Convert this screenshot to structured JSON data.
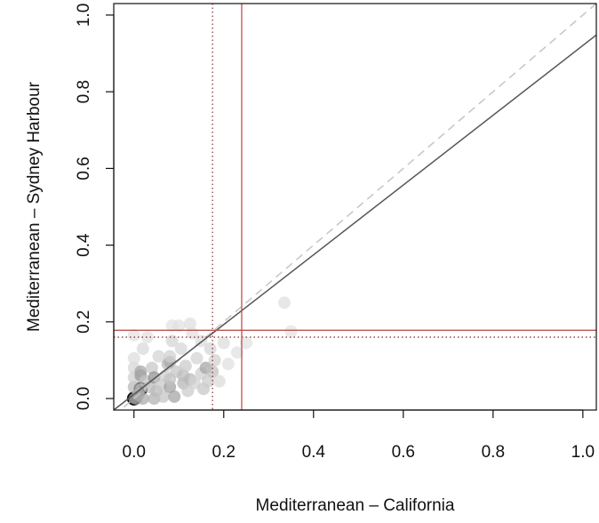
{
  "chart_data": {
    "type": "scatter",
    "title": "",
    "xlabel": "Mediterranean – California",
    "ylabel": "Mediterranean – Sydney Harbour",
    "xlim": [
      -0.045,
      1.03
    ],
    "ylim": [
      -0.03,
      1.03
    ],
    "xticks": [
      "0.0",
      "0.2",
      "0.4",
      "0.6",
      "0.8",
      "1.0"
    ],
    "yticks": [
      "0.0",
      "0.2",
      "0.4",
      "0.6",
      "0.8",
      "1.0"
    ],
    "grid": false,
    "legend": "none",
    "reference_lines": {
      "identity_dashed": {
        "from": [
          -0.045,
          -0.045
        ],
        "to": [
          1.03,
          1.03
        ],
        "color": "#c8c8c8",
        "style": "dashed"
      },
      "fit_line": {
        "from": [
          -0.045,
          -0.03
        ],
        "to": [
          1.03,
          0.948
        ],
        "color": "#555555",
        "style": "solid"
      },
      "red_vertical_x": 0.24,
      "red_horizontal_y": 0.178,
      "dotted_vertical_x": 0.175,
      "dotted_horizontal_y": 0.16,
      "red_color": "#c0504d",
      "dotted_color": "#8b3a3a"
    },
    "points": [
      {
        "x": 0.0,
        "y": 0.0,
        "shade": "#444444",
        "outline": true
      },
      {
        "x": 0.015,
        "y": 0.025,
        "shade": "#666666",
        "outline": true
      },
      {
        "x": 0.005,
        "y": 0.0,
        "shade": "#999999"
      },
      {
        "x": 0.01,
        "y": 0.01,
        "shade": "#aaaaaa"
      },
      {
        "x": 0.02,
        "y": 0.0,
        "shade": "#aaaaaa"
      },
      {
        "x": 0.0,
        "y": 0.03,
        "shade": "#b5b5b5"
      },
      {
        "x": 0.0,
        "y": 0.055,
        "shade": "#cfcfcf"
      },
      {
        "x": 0.0,
        "y": 0.08,
        "shade": "#d5d5d5"
      },
      {
        "x": 0.0,
        "y": 0.105,
        "shade": "#dddddd"
      },
      {
        "x": 0.0,
        "y": 0.165,
        "shade": "#e2e2e2"
      },
      {
        "x": 0.015,
        "y": 0.06,
        "shade": "#9a9a9a"
      },
      {
        "x": 0.015,
        "y": 0.07,
        "shade": "#a5a5a5"
      },
      {
        "x": 0.02,
        "y": 0.13,
        "shade": "#d8d8d8"
      },
      {
        "x": 0.025,
        "y": 0.045,
        "shade": "#c2c2c2"
      },
      {
        "x": 0.03,
        "y": 0.16,
        "shade": "#e0e0e0"
      },
      {
        "x": 0.035,
        "y": 0.03,
        "shade": "#bdbdbd"
      },
      {
        "x": 0.04,
        "y": 0.08,
        "shade": "#c6c6c6"
      },
      {
        "x": 0.045,
        "y": 0.0,
        "shade": "#b0b0b0"
      },
      {
        "x": 0.045,
        "y": 0.055,
        "shade": "#8f8f8f"
      },
      {
        "x": 0.05,
        "y": 0.02,
        "shade": "#bababa"
      },
      {
        "x": 0.055,
        "y": 0.11,
        "shade": "#d3d3d3"
      },
      {
        "x": 0.06,
        "y": 0.035,
        "shade": "#c8c8c8"
      },
      {
        "x": 0.065,
        "y": 0.005,
        "shade": "#c4c4c4"
      },
      {
        "x": 0.07,
        "y": 0.06,
        "shade": "#cdcdcd"
      },
      {
        "x": 0.075,
        "y": 0.09,
        "shade": "#b9b9b9"
      },
      {
        "x": 0.08,
        "y": 0.03,
        "shade": "#a0a0a0"
      },
      {
        "x": 0.08,
        "y": 0.05,
        "shade": "#c0c0c0"
      },
      {
        "x": 0.08,
        "y": 0.095,
        "shade": "#a8a8a8"
      },
      {
        "x": 0.08,
        "y": 0.11,
        "shade": "#cfcfcf"
      },
      {
        "x": 0.085,
        "y": 0.15,
        "shade": "#d4d4d4"
      },
      {
        "x": 0.085,
        "y": 0.19,
        "shade": "#e2e2e2"
      },
      {
        "x": 0.09,
        "y": 0.005,
        "shade": "#a2a2a2"
      },
      {
        "x": 0.095,
        "y": 0.07,
        "shade": "#c4c4c4"
      },
      {
        "x": 0.1,
        "y": 0.19,
        "shade": "#e0e0e0"
      },
      {
        "x": 0.105,
        "y": 0.13,
        "shade": "#d6d6d6"
      },
      {
        "x": 0.11,
        "y": 0.04,
        "shade": "#b4b4b4"
      },
      {
        "x": 0.11,
        "y": 0.06,
        "shade": "#bcbcbc"
      },
      {
        "x": 0.115,
        "y": 0.085,
        "shade": "#c9c9c9"
      },
      {
        "x": 0.12,
        "y": 0.02,
        "shade": "#cacaca"
      },
      {
        "x": 0.125,
        "y": 0.05,
        "shade": "#b8b8b8"
      },
      {
        "x": 0.125,
        "y": 0.195,
        "shade": "#dedede"
      },
      {
        "x": 0.13,
        "y": 0.17,
        "shade": "#e0e0e0"
      },
      {
        "x": 0.135,
        "y": 0.04,
        "shade": "#d0d0d0"
      },
      {
        "x": 0.14,
        "y": 0.105,
        "shade": "#d2d2d2"
      },
      {
        "x": 0.15,
        "y": 0.065,
        "shade": "#cdcdcd"
      },
      {
        "x": 0.15,
        "y": 0.15,
        "shade": "#dcdcdc"
      },
      {
        "x": 0.155,
        "y": 0.025,
        "shade": "#c6c6c6"
      },
      {
        "x": 0.16,
        "y": 0.08,
        "shade": "#a4a4a4"
      },
      {
        "x": 0.165,
        "y": 0.045,
        "shade": "#cbcbcb"
      },
      {
        "x": 0.17,
        "y": 0.13,
        "shade": "#d4d4d4"
      },
      {
        "x": 0.175,
        "y": 0.07,
        "shade": "#bfbfbf"
      },
      {
        "x": 0.18,
        "y": 0.1,
        "shade": "#d0d0d0"
      },
      {
        "x": 0.19,
        "y": 0.045,
        "shade": "#dadada"
      },
      {
        "x": 0.2,
        "y": 0.145,
        "shade": "#dcdcdc"
      },
      {
        "x": 0.21,
        "y": 0.09,
        "shade": "#dfdfdf"
      },
      {
        "x": 0.23,
        "y": 0.12,
        "shade": "#e0e0e0"
      },
      {
        "x": 0.25,
        "y": 0.145,
        "shade": "#e2e2e2"
      },
      {
        "x": 0.335,
        "y": 0.25,
        "shade": "#dedede"
      },
      {
        "x": 0.35,
        "y": 0.175,
        "shade": "#e3e3e3"
      }
    ]
  }
}
